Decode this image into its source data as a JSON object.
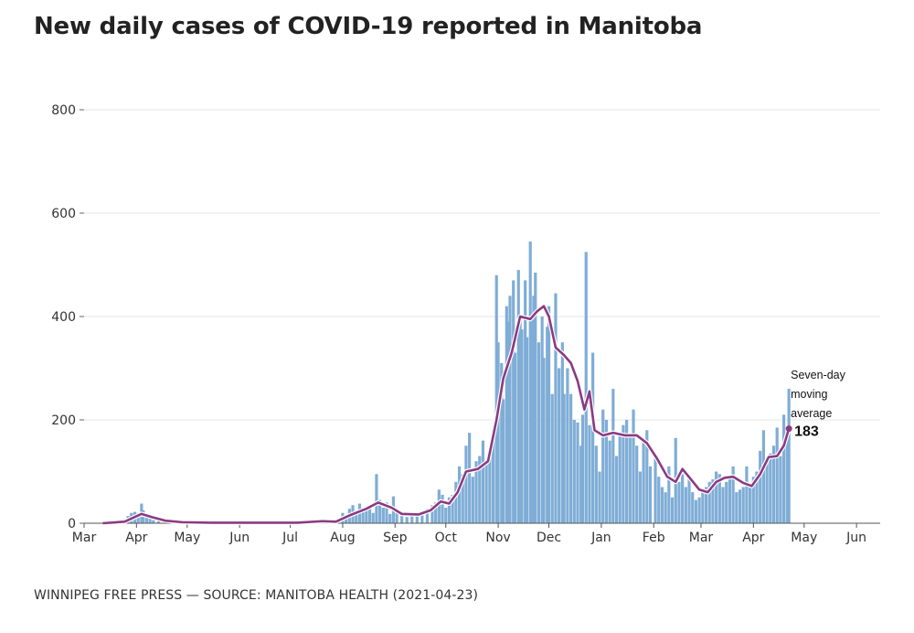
{
  "chart_data": {
    "type": "bar",
    "title": "New daily cases of COVID-19 reported in Manitoba",
    "source": "WINNIPEG FREE PRESS — SOURCE: MANITOBA HEALTH (2021-04-23)",
    "x_tick_labels": [
      "Mar",
      "Apr",
      "May",
      "Jun",
      "Jul",
      "Aug",
      "Sep",
      "Oct",
      "Nov",
      "Dec",
      "Jan",
      "Feb",
      "Mar",
      "Apr",
      "May",
      "Jun"
    ],
    "x_tick_dates": [
      "2020-03-01",
      "2020-04-01",
      "2020-05-01",
      "2020-06-01",
      "2020-07-01",
      "2020-08-01",
      "2020-09-01",
      "2020-10-01",
      "2020-11-01",
      "2020-12-01",
      "2021-01-01",
      "2021-02-01",
      "2021-03-01",
      "2021-04-01",
      "2021-05-01",
      "2021-06-01"
    ],
    "x_range": [
      "2020-03-01",
      "2021-06-15"
    ],
    "y_ticks": [
      0,
      200,
      400,
      600,
      800
    ],
    "ylim": [
      0,
      800
    ],
    "grid": true,
    "series": [
      {
        "kind": "bar",
        "color": "#7fadd6",
        "data": [
          [
            "2020-03-12",
            1
          ],
          [
            "2020-03-14",
            3
          ],
          [
            "2020-03-16",
            4
          ],
          [
            "2020-03-19",
            6
          ],
          [
            "2020-03-21",
            5
          ],
          [
            "2020-03-23",
            2
          ],
          [
            "2020-03-25",
            8
          ],
          [
            "2020-03-27",
            14
          ],
          [
            "2020-03-29",
            20
          ],
          [
            "2020-03-31",
            22
          ],
          [
            "2020-04-02",
            20
          ],
          [
            "2020-04-04",
            38
          ],
          [
            "2020-04-05",
            25
          ],
          [
            "2020-04-07",
            18
          ],
          [
            "2020-04-09",
            10
          ],
          [
            "2020-04-11",
            6
          ],
          [
            "2020-04-14",
            4
          ],
          [
            "2020-04-18",
            3
          ],
          [
            "2020-04-22",
            2
          ],
          [
            "2020-04-28",
            1
          ],
          [
            "2020-05-10",
            1
          ],
          [
            "2020-05-25",
            1
          ],
          [
            "2020-06-10",
            1
          ],
          [
            "2020-06-25",
            1
          ],
          [
            "2020-07-05",
            2
          ],
          [
            "2020-07-12",
            3
          ],
          [
            "2020-07-18",
            8
          ],
          [
            "2020-07-24",
            6
          ],
          [
            "2020-07-28",
            3
          ],
          [
            "2020-08-01",
            20
          ],
          [
            "2020-08-03",
            12
          ],
          [
            "2020-08-05",
            28
          ],
          [
            "2020-08-07",
            35
          ],
          [
            "2020-08-09",
            22
          ],
          [
            "2020-08-11",
            38
          ],
          [
            "2020-08-13",
            30
          ],
          [
            "2020-08-15",
            25
          ],
          [
            "2020-08-17",
            32
          ],
          [
            "2020-08-19",
            20
          ],
          [
            "2020-08-21",
            95
          ],
          [
            "2020-08-23",
            45
          ],
          [
            "2020-08-25",
            30
          ],
          [
            "2020-08-27",
            40
          ],
          [
            "2020-08-29",
            18
          ],
          [
            "2020-08-31",
            52
          ],
          [
            "2020-09-02",
            20
          ],
          [
            "2020-09-05",
            15
          ],
          [
            "2020-09-08",
            12
          ],
          [
            "2020-09-11",
            18
          ],
          [
            "2020-09-14",
            16
          ],
          [
            "2020-09-17",
            22
          ],
          [
            "2020-09-20",
            28
          ],
          [
            "2020-09-23",
            35
          ],
          [
            "2020-09-25",
            40
          ],
          [
            "2020-09-27",
            65
          ],
          [
            "2020-09-29",
            55
          ],
          [
            "2020-10-01",
            30
          ],
          [
            "2020-10-03",
            50
          ],
          [
            "2020-10-05",
            55
          ],
          [
            "2020-10-07",
            80
          ],
          [
            "2020-10-09",
            110
          ],
          [
            "2020-10-11",
            95
          ],
          [
            "2020-10-13",
            150
          ],
          [
            "2020-10-15",
            175
          ],
          [
            "2020-10-17",
            90
          ],
          [
            "2020-10-19",
            120
          ],
          [
            "2020-10-21",
            130
          ],
          [
            "2020-10-23",
            160
          ],
          [
            "2020-10-25",
            115
          ],
          [
            "2020-10-27",
            140
          ],
          [
            "2020-10-29",
            180
          ],
          [
            "2020-10-31",
            480
          ],
          [
            "2020-11-01",
            350
          ],
          [
            "2020-11-03",
            310
          ],
          [
            "2020-11-04",
            240
          ],
          [
            "2020-11-06",
            420
          ],
          [
            "2020-11-07",
            390
          ],
          [
            "2020-11-08",
            440
          ],
          [
            "2020-11-10",
            470
          ],
          [
            "2020-11-11",
            330
          ],
          [
            "2020-11-13",
            490
          ],
          [
            "2020-11-14",
            400
          ],
          [
            "2020-11-15",
            375
          ],
          [
            "2020-11-17",
            470
          ],
          [
            "2020-11-18",
            360
          ],
          [
            "2020-11-20",
            545
          ],
          [
            "2020-11-21",
            400
          ],
          [
            "2020-11-22",
            440
          ],
          [
            "2020-11-23",
            485
          ],
          [
            "2020-11-25",
            350
          ],
          [
            "2020-11-27",
            400
          ],
          [
            "2020-11-28",
            320
          ],
          [
            "2020-11-30",
            380
          ],
          [
            "2020-12-01",
            420
          ],
          [
            "2020-12-03",
            250
          ],
          [
            "2020-12-05",
            445
          ],
          [
            "2020-12-07",
            300
          ],
          [
            "2020-12-09",
            350
          ],
          [
            "2020-12-10",
            250
          ],
          [
            "2020-12-12",
            300
          ],
          [
            "2020-12-14",
            250
          ],
          [
            "2020-12-16",
            200
          ],
          [
            "2020-12-18",
            195
          ],
          [
            "2020-12-20",
            150
          ],
          [
            "2020-12-21",
            210
          ],
          [
            "2020-12-23",
            525
          ],
          [
            "2020-12-25",
            190
          ],
          [
            "2020-12-27",
            330
          ],
          [
            "2020-12-29",
            150
          ],
          [
            "2020-12-31",
            100
          ],
          [
            "2021-01-02",
            220
          ],
          [
            "2021-01-04",
            200
          ],
          [
            "2021-01-06",
            160
          ],
          [
            "2021-01-08",
            260
          ],
          [
            "2021-01-10",
            130
          ],
          [
            "2021-01-12",
            170
          ],
          [
            "2021-01-14",
            190
          ],
          [
            "2021-01-16",
            200
          ],
          [
            "2021-01-18",
            170
          ],
          [
            "2021-01-20",
            220
          ],
          [
            "2021-01-22",
            150
          ],
          [
            "2021-01-24",
            100
          ],
          [
            "2021-01-26",
            160
          ],
          [
            "2021-01-28",
            180
          ],
          [
            "2021-01-30",
            110
          ],
          [
            "2021-02-02",
            130
          ],
          [
            "2021-02-04",
            90
          ],
          [
            "2021-02-06",
            70
          ],
          [
            "2021-02-08",
            60
          ],
          [
            "2021-02-10",
            110
          ],
          [
            "2021-02-12",
            50
          ],
          [
            "2021-02-14",
            165
          ],
          [
            "2021-02-16",
            80
          ],
          [
            "2021-02-18",
            95
          ],
          [
            "2021-02-20",
            70
          ],
          [
            "2021-02-22",
            90
          ],
          [
            "2021-02-24",
            60
          ],
          [
            "2021-02-26",
            45
          ],
          [
            "2021-02-28",
            50
          ],
          [
            "2021-03-02",
            60
          ],
          [
            "2021-03-04",
            70
          ],
          [
            "2021-03-06",
            80
          ],
          [
            "2021-03-08",
            85
          ],
          [
            "2021-03-10",
            100
          ],
          [
            "2021-03-12",
            95
          ],
          [
            "2021-03-14",
            70
          ],
          [
            "2021-03-16",
            80
          ],
          [
            "2021-03-18",
            90
          ],
          [
            "2021-03-20",
            110
          ],
          [
            "2021-03-22",
            60
          ],
          [
            "2021-03-24",
            65
          ],
          [
            "2021-03-26",
            70
          ],
          [
            "2021-03-28",
            110
          ],
          [
            "2021-03-30",
            75
          ],
          [
            "2021-04-01",
            90
          ],
          [
            "2021-04-03",
            100
          ],
          [
            "2021-04-05",
            140
          ],
          [
            "2021-04-07",
            180
          ],
          [
            "2021-04-09",
            120
          ],
          [
            "2021-04-11",
            135
          ],
          [
            "2021-04-13",
            150
          ],
          [
            "2021-04-15",
            185
          ],
          [
            "2021-04-17",
            130
          ],
          [
            "2021-04-19",
            210
          ],
          [
            "2021-04-21",
            170
          ],
          [
            "2021-04-22",
            260
          ]
        ]
      },
      {
        "kind": "line",
        "name": "Seven-day moving average",
        "color": "#8b3a82",
        "data": [
          [
            "2020-03-12",
            0
          ],
          [
            "2020-03-25",
            3
          ],
          [
            "2020-03-31",
            12
          ],
          [
            "2020-04-04",
            18
          ],
          [
            "2020-04-10",
            12
          ],
          [
            "2020-04-18",
            5
          ],
          [
            "2020-04-28",
            2
          ],
          [
            "2020-05-15",
            1
          ],
          [
            "2020-06-15",
            1
          ],
          [
            "2020-07-05",
            1
          ],
          [
            "2020-07-20",
            4
          ],
          [
            "2020-07-28",
            3
          ],
          [
            "2020-08-05",
            15
          ],
          [
            "2020-08-15",
            28
          ],
          [
            "2020-08-22",
            40
          ],
          [
            "2020-08-30",
            30
          ],
          [
            "2020-09-05",
            18
          ],
          [
            "2020-09-15",
            17
          ],
          [
            "2020-09-22",
            25
          ],
          [
            "2020-09-28",
            42
          ],
          [
            "2020-10-03",
            38
          ],
          [
            "2020-10-08",
            60
          ],
          [
            "2020-10-13",
            100
          ],
          [
            "2020-10-20",
            105
          ],
          [
            "2020-10-26",
            120
          ],
          [
            "2020-10-31",
            200
          ],
          [
            "2020-11-04",
            280
          ],
          [
            "2020-11-09",
            330
          ],
          [
            "2020-11-14",
            400
          ],
          [
            "2020-11-20",
            395
          ],
          [
            "2020-11-24",
            410
          ],
          [
            "2020-11-28",
            420
          ],
          [
            "2020-12-01",
            400
          ],
          [
            "2020-12-05",
            340
          ],
          [
            "2020-12-10",
            325
          ],
          [
            "2020-12-14",
            310
          ],
          [
            "2020-12-18",
            275
          ],
          [
            "2020-12-22",
            220
          ],
          [
            "2020-12-25",
            255
          ],
          [
            "2020-12-28",
            180
          ],
          [
            "2021-01-02",
            170
          ],
          [
            "2021-01-08",
            175
          ],
          [
            "2021-01-15",
            170
          ],
          [
            "2021-01-22",
            170
          ],
          [
            "2021-01-28",
            155
          ],
          [
            "2021-02-03",
            125
          ],
          [
            "2021-02-09",
            90
          ],
          [
            "2021-02-14",
            80
          ],
          [
            "2021-02-18",
            105
          ],
          [
            "2021-02-23",
            85
          ],
          [
            "2021-02-28",
            65
          ],
          [
            "2021-03-05",
            60
          ],
          [
            "2021-03-10",
            80
          ],
          [
            "2021-03-15",
            88
          ],
          [
            "2021-03-20",
            90
          ],
          [
            "2021-03-26",
            78
          ],
          [
            "2021-03-31",
            72
          ],
          [
            "2021-04-05",
            95
          ],
          [
            "2021-04-10",
            128
          ],
          [
            "2021-04-15",
            130
          ],
          [
            "2021-04-19",
            150
          ],
          [
            "2021-04-22",
            183
          ]
        ]
      }
    ],
    "annotation": {
      "lines": [
        "Seven-day",
        "moving",
        "average"
      ],
      "value": "183",
      "date": "2021-04-22"
    }
  }
}
